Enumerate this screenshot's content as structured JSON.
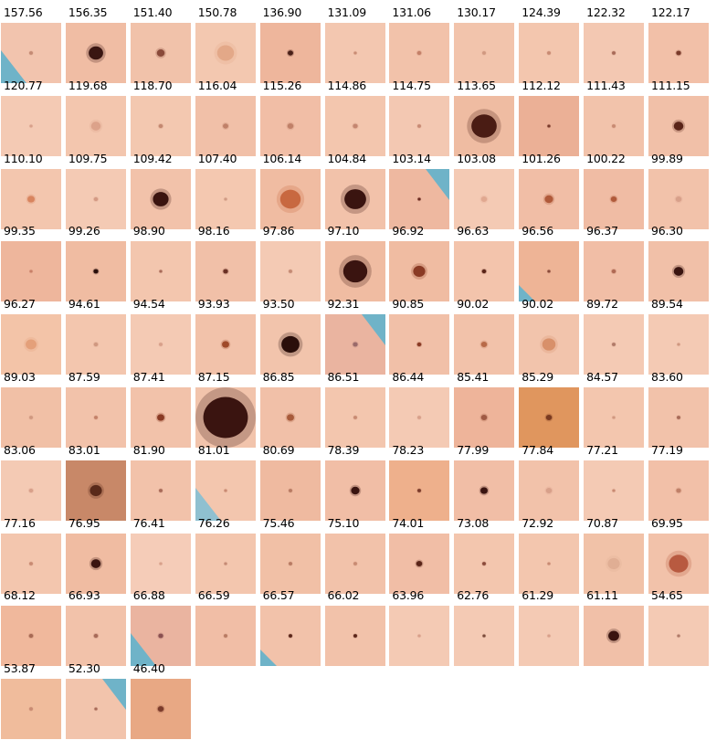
{
  "grid": {
    "columns": 11,
    "tiles": [
      {
        "score": "157.56",
        "skin": "#f2c4ae",
        "lesion": "#c48a74",
        "size": 0.06,
        "edge": "#6fb3c8"
      },
      {
        "score": "156.35",
        "skin": "#f0bda4",
        "lesion": "#3a1612",
        "size": 0.24
      },
      {
        "score": "151.40",
        "skin": "#f1c2aa",
        "lesion": "#8a4a3a",
        "size": 0.13
      },
      {
        "score": "150.78",
        "skin": "#f3c8b0",
        "lesion": "#e3a888",
        "size": 0.28
      },
      {
        "score": "136.90",
        "skin": "#eeb69c",
        "lesion": "#4a2018",
        "size": 0.09
      },
      {
        "score": "131.09",
        "skin": "#f3c7b0",
        "lesion": "#c88c74",
        "size": 0.05
      },
      {
        "score": "131.06",
        "skin": "#f2c2aa",
        "lesion": "#c48068",
        "size": 0.07
      },
      {
        "score": "130.17",
        "skin": "#f2c4ac",
        "lesion": "#d09880",
        "size": 0.06
      },
      {
        "score": "124.39",
        "skin": "#f3c6ae",
        "lesion": "#c88a72",
        "size": 0.06
      },
      {
        "score": "122.32",
        "skin": "#f3c8b2",
        "lesion": "#a86a58",
        "size": 0.06
      },
      {
        "score": "122.17",
        "skin": "#f2c0a8",
        "lesion": "#7a3a2a",
        "size": 0.08
      },
      {
        "score": "120.77",
        "skin": "#f4cab4",
        "lesion": "#d8a08a",
        "size": 0.05
      },
      {
        "score": "119.68",
        "skin": "#f3c6ae",
        "lesion": "#dca28a",
        "size": 0.16
      },
      {
        "score": "118.70",
        "skin": "#f3c8b0",
        "lesion": "#c48870",
        "size": 0.07
      },
      {
        "score": "116.04",
        "skin": "#f1c0a8",
        "lesion": "#c08068",
        "size": 0.09
      },
      {
        "score": "115.26",
        "skin": "#f1bea6",
        "lesion": "#c08068",
        "size": 0.1
      },
      {
        "score": "114.86",
        "skin": "#f3c6ae",
        "lesion": "#c48670",
        "size": 0.08
      },
      {
        "score": "114.75",
        "skin": "#f3c8b2",
        "lesion": "#c88a74",
        "size": 0.06
      },
      {
        "score": "113.65",
        "skin": "#efbca2",
        "lesion": "#4a1c14",
        "size": 0.42
      },
      {
        "score": "112.12",
        "skin": "#ebb096",
        "lesion": "#7a3a2a",
        "size": 0.05
      },
      {
        "score": "111.43",
        "skin": "#f2c3ab",
        "lesion": "#c88a72",
        "size": 0.06
      },
      {
        "score": "111.15",
        "skin": "#f1c0a8",
        "lesion": "#5a2418",
        "size": 0.16
      },
      {
        "score": "110.10",
        "skin": "#f3c6ae",
        "lesion": "#d8845e",
        "size": 0.12
      },
      {
        "score": "109.75",
        "skin": "#f4cab4",
        "lesion": "#d49a84",
        "size": 0.07
      },
      {
        "score": "109.42",
        "skin": "#f2c2aa",
        "lesion": "#3a1410",
        "size": 0.26
      },
      {
        "score": "107.40",
        "skin": "#f4c8b0",
        "lesion": "#d09a84",
        "size": 0.05
      },
      {
        "score": "106.14",
        "skin": "#f0bca2",
        "lesion": "#c86840",
        "size": 0.34
      },
      {
        "score": "104.84",
        "skin": "#f2c2aa",
        "lesion": "#3a1410",
        "size": 0.36
      },
      {
        "score": "103.14",
        "skin": "#eeb8a0",
        "lesion": "#6a2a20",
        "size": 0.05,
        "edge": "#6fb3c8"
      },
      {
        "score": "103.08",
        "skin": "#f4cab4",
        "lesion": "#e0a890",
        "size": 0.1
      },
      {
        "score": "101.26",
        "skin": "#f1bea6",
        "lesion": "#b05a3a",
        "size": 0.14
      },
      {
        "score": "100.22",
        "skin": "#f0bca4",
        "lesion": "#b05a3a",
        "size": 0.1
      },
      {
        "score": "99.89",
        "skin": "#f2c2aa",
        "lesion": "#d8a08a",
        "size": 0.1
      },
      {
        "score": "99.35",
        "skin": "#eeb69c",
        "lesion": "#c88068",
        "size": 0.05
      },
      {
        "score": "99.26",
        "skin": "#f0bca2",
        "lesion": "#2a0e0a",
        "size": 0.08
      },
      {
        "score": "98.90",
        "skin": "#f3c6ae",
        "lesion": "#a86a58",
        "size": 0.05
      },
      {
        "score": "98.16",
        "skin": "#f1c0a8",
        "lesion": "#6a3024",
        "size": 0.08
      },
      {
        "score": "97.86",
        "skin": "#f4cab4",
        "lesion": "#c48a74",
        "size": 0.06
      },
      {
        "score": "97.10",
        "skin": "#f0bca2",
        "lesion": "#3a1410",
        "size": 0.4
      },
      {
        "score": "96.92",
        "skin": "#f0bca2",
        "lesion": "#8a3a24",
        "size": 0.2
      },
      {
        "score": "96.63",
        "skin": "#f3c4ac",
        "lesion": "#5a2418",
        "size": 0.07
      },
      {
        "score": "96.56",
        "skin": "#eeb496",
        "lesion": "#8a4a3a",
        "size": 0.05,
        "edge": "#6fb3c8"
      },
      {
        "score": "96.37",
        "skin": "#f1bea6",
        "lesion": "#b06a54",
        "size": 0.07
      },
      {
        "score": "96.30",
        "skin": "#f1c0a8",
        "lesion": "#3a1410",
        "size": 0.16
      },
      {
        "score": "96.27",
        "skin": "#f3c4a8",
        "lesion": "#e4a07a",
        "size": 0.18
      },
      {
        "score": "94.61",
        "skin": "#f3c6ae",
        "lesion": "#d09880",
        "size": 0.07
      },
      {
        "score": "94.54",
        "skin": "#f4cab4",
        "lesion": "#d8a08a",
        "size": 0.06
      },
      {
        "score": "93.93",
        "skin": "#f2c2aa",
        "lesion": "#a04a2a",
        "size": 0.12
      },
      {
        "score": "93.50",
        "skin": "#f2c4ac",
        "lesion": "#2a0e0a",
        "size": 0.3
      },
      {
        "score": "92.31",
        "skin": "#eab4a0",
        "lesion": "#9a6a6a",
        "size": 0.08,
        "edge": "#6fb3c8"
      },
      {
        "score": "90.85",
        "skin": "#f1c0a8",
        "lesion": "#8a3a24",
        "size": 0.07
      },
      {
        "score": "90.02",
        "skin": "#f2c2aa",
        "lesion": "#b86a48",
        "size": 0.1
      },
      {
        "score": "90.02",
        "skin": "#f2c4ac",
        "lesion": "#d8906a",
        "size": 0.22
      },
      {
        "score": "89.72",
        "skin": "#f4cab4",
        "lesion": "#b07a68",
        "size": 0.06
      },
      {
        "score": "89.54",
        "skin": "#f4cab4",
        "lesion": "#d09880",
        "size": 0.05
      },
      {
        "score": "89.03",
        "skin": "#f1c0a6",
        "lesion": "#d09880",
        "size": 0.06
      },
      {
        "score": "87.59",
        "skin": "#f2c2aa",
        "lesion": "#c48068",
        "size": 0.06
      },
      {
        "score": "87.41",
        "skin": "#f2c2aa",
        "lesion": "#8a3a24",
        "size": 0.12
      },
      {
        "score": "87.15",
        "skin": "#f2c4ac",
        "lesion": "#3a1410",
        "size": 0.74
      },
      {
        "score": "86.85",
        "skin": "#f1c0a8",
        "lesion": "#a85a3a",
        "size": 0.12
      },
      {
        "score": "86.51",
        "skin": "#f3c6ae",
        "lesion": "#c88a72",
        "size": 0.06
      },
      {
        "score": "86.44",
        "skin": "#f4cab4",
        "lesion": "#d8a08a",
        "size": 0.06
      },
      {
        "score": "85.41",
        "skin": "#eeb49a",
        "lesion": "#a05a44",
        "size": 0.1
      },
      {
        "score": "85.29",
        "skin": "#e0965e",
        "lesion": "#7a3a20",
        "size": 0.1
      },
      {
        "score": "84.57",
        "skin": "#f3c6ae",
        "lesion": "#d09880",
        "size": 0.05
      },
      {
        "score": "83.60",
        "skin": "#f2c2aa",
        "lesion": "#a86a58",
        "size": 0.06
      },
      {
        "score": "83.06",
        "skin": "#f4cab4",
        "lesion": "#d8a08a",
        "size": 0.07
      },
      {
        "score": "83.01",
        "skin": "#c88868",
        "lesion": "#5a2a1a",
        "size": 0.2
      },
      {
        "score": "81.90",
        "skin": "#f2c2aa",
        "lesion": "#a86a58",
        "size": 0.06
      },
      {
        "score": "81.01",
        "skin": "#f3c6ae",
        "lesion": "#c88a72",
        "size": 0.05,
        "edge": "#8fc0d0"
      },
      {
        "score": "80.69",
        "skin": "#efbaa0",
        "lesion": "#b87a62",
        "size": 0.06
      },
      {
        "score": "78.39",
        "skin": "#f1bea6",
        "lesion": "#3a1410",
        "size": 0.14
      },
      {
        "score": "78.23",
        "skin": "#eeb08c",
        "lesion": "#7a3a2a",
        "size": 0.06
      },
      {
        "score": "77.99",
        "skin": "#f1bea6",
        "lesion": "#3a1410",
        "size": 0.12
      },
      {
        "score": "77.84",
        "skin": "#f2c2aa",
        "lesion": "#d8a08a",
        "size": 0.1
      },
      {
        "score": "77.21",
        "skin": "#f4cab4",
        "lesion": "#c88a72",
        "size": 0.05
      },
      {
        "score": "77.19",
        "skin": "#f2c0a8",
        "lesion": "#c08068",
        "size": 0.08
      },
      {
        "score": "77.16",
        "skin": "#f3c6ae",
        "lesion": "#c88a72",
        "size": 0.06
      },
      {
        "score": "76.95",
        "skin": "#f0bca2",
        "lesion": "#3a1410",
        "size": 0.16
      },
      {
        "score": "76.41",
        "skin": "#f5ccb8",
        "lesion": "#d8a08a",
        "size": 0.05
      },
      {
        "score": "76.26",
        "skin": "#f3c6ae",
        "lesion": "#c48a74",
        "size": 0.05
      },
      {
        "score": "75.46",
        "skin": "#f1c0a6",
        "lesion": "#b87a62",
        "size": 0.06
      },
      {
        "score": "75.10",
        "skin": "#f2c2aa",
        "lesion": "#c88a72",
        "size": 0.06
      },
      {
        "score": "74.01",
        "skin": "#f1bea6",
        "lesion": "#5a2418",
        "size": 0.1
      },
      {
        "score": "73.08",
        "skin": "#f3c6ae",
        "lesion": "#8a4a3a",
        "size": 0.06
      },
      {
        "score": "72.92",
        "skin": "#f3c6ae",
        "lesion": "#c88a72",
        "size": 0.05
      },
      {
        "score": "70.87",
        "skin": "#f1c2a8",
        "lesion": "#e0ae94",
        "size": 0.2
      },
      {
        "score": "69.95",
        "skin": "#f2c2aa",
        "lesion": "#b85a40",
        "size": 0.32
      },
      {
        "score": "68.12",
        "skin": "#f0b89c",
        "lesion": "#a86a54",
        "size": 0.07
      },
      {
        "score": "66.93",
        "skin": "#f2c2aa",
        "lesion": "#a86a58",
        "size": 0.07
      },
      {
        "score": "66.88",
        "skin": "#eab4a0",
        "lesion": "#8a5050",
        "size": 0.08,
        "edge": "#6fb3c8"
      },
      {
        "score": "66.59",
        "skin": "#f1bea6",
        "lesion": "#b87a62",
        "size": 0.06
      },
      {
        "score": "66.57",
        "skin": "#f2c2aa",
        "lesion": "#5a2418",
        "size": 0.06,
        "edge": "#6fb3c8"
      },
      {
        "score": "66.02",
        "skin": "#f2c2aa",
        "lesion": "#5a2418",
        "size": 0.06
      },
      {
        "score": "63.96",
        "skin": "#f4cab4",
        "lesion": "#d8a08a",
        "size": 0.05
      },
      {
        "score": "62.76",
        "skin": "#f4cab4",
        "lesion": "#7a4a3a",
        "size": 0.05
      },
      {
        "score": "61.29",
        "skin": "#f4cab4",
        "lesion": "#d8a08a",
        "size": 0.05
      },
      {
        "score": "61.11",
        "skin": "#f1c0a8",
        "lesion": "#3a1410",
        "size": 0.18
      },
      {
        "score": "54.65",
        "skin": "#f4cab4",
        "lesion": "#b07a68",
        "size": 0.05
      },
      {
        "score": "53.87",
        "skin": "#f0bc9c",
        "lesion": "#c88a72",
        "size": 0.06
      },
      {
        "score": "52.30",
        "skin": "#f2c4ac",
        "lesion": "#a86a58",
        "size": 0.05,
        "edge": "#6fb3c8"
      },
      {
        "score": "46.40",
        "skin": "#e8a884",
        "lesion": "#7a3a2a",
        "size": 0.1
      }
    ]
  }
}
